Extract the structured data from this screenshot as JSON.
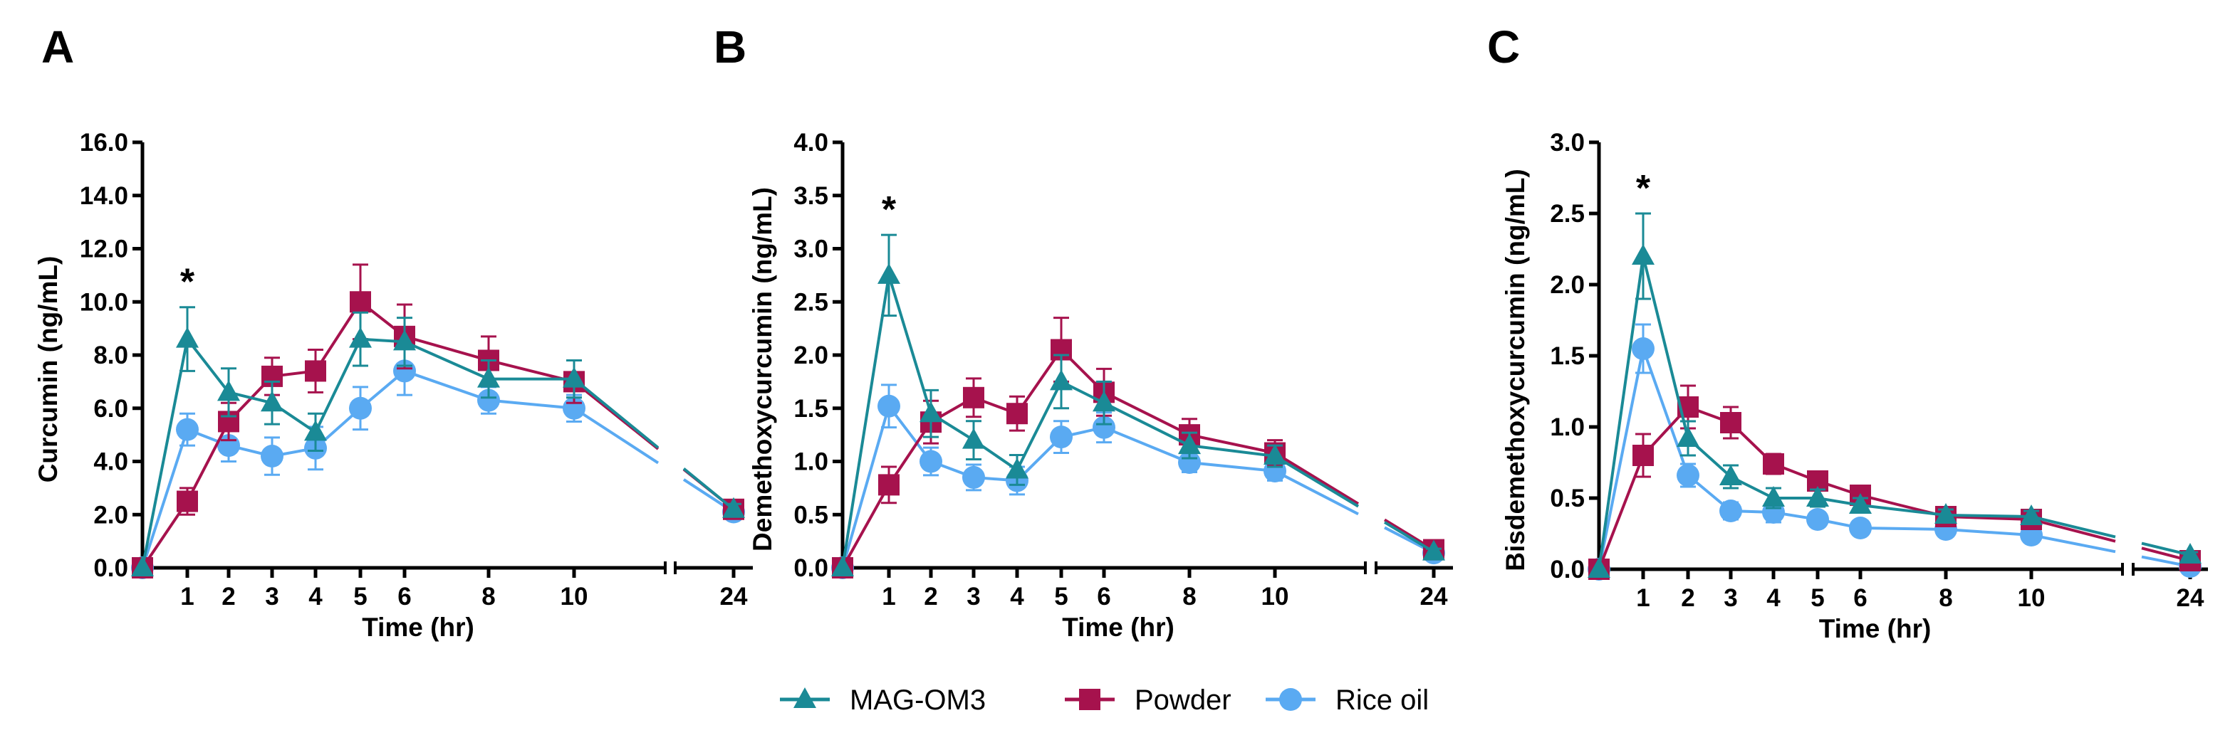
{
  "colors": {
    "mag_om3": "#1a8a96",
    "powder": "#a6124d",
    "rice_oil": "#5aaaf2",
    "axis": "#000000"
  },
  "legend": {
    "entries": [
      {
        "label": "MAG-OM3",
        "marker": "triangle",
        "color_key": "mag_om3"
      },
      {
        "label": "Powder",
        "marker": "square",
        "color_key": "powder"
      },
      {
        "label": "Rice oil",
        "marker": "circle",
        "color_key": "rice_oil"
      }
    ]
  },
  "chart_data": [
    {
      "panel": "A",
      "type": "line",
      "title": "",
      "xlabel": "Time (hr)",
      "ylabel": "Curcumin (ng/mL)",
      "x_ticks": [
        1,
        2,
        3,
        4,
        5,
        6,
        8,
        10,
        24
      ],
      "y_ticks": [
        "0.0",
        "2.0",
        "4.0",
        "6.0",
        "8.0",
        "10.0",
        "12.0",
        "14.0",
        "16.0"
      ],
      "ylim": [
        0,
        16
      ],
      "x_axis_break": "between 10 and 24",
      "annotations": [
        {
          "text": "*",
          "x": 1
        }
      ],
      "x": [
        0,
        1,
        2,
        3,
        4,
        5,
        6,
        8,
        10,
        24
      ],
      "series": [
        {
          "name": "MAG-OM3",
          "values": [
            0,
            8.6,
            6.6,
            6.2,
            5.1,
            8.6,
            8.5,
            7.1,
            7.1,
            2.2
          ],
          "errors": [
            0,
            1.2,
            0.9,
            0.8,
            0.7,
            1.0,
            0.9,
            0.7,
            0.7,
            0.2
          ]
        },
        {
          "name": "Powder",
          "values": [
            0,
            2.5,
            5.5,
            7.2,
            7.4,
            10.0,
            8.7,
            7.8,
            7.0,
            2.2
          ],
          "errors": [
            0,
            0.5,
            0.7,
            0.7,
            0.8,
            1.4,
            1.2,
            0.9,
            0.8,
            0.2
          ]
        },
        {
          "name": "Rice oil",
          "values": [
            0,
            5.2,
            4.6,
            4.2,
            4.5,
            6.0,
            7.4,
            6.3,
            6.0,
            2.1
          ],
          "errors": [
            0,
            0.6,
            0.6,
            0.7,
            0.8,
            0.8,
            0.9,
            0.5,
            0.5,
            0.2
          ]
        }
      ]
    },
    {
      "panel": "B",
      "type": "line",
      "title": "",
      "xlabel": "Time (hr)",
      "ylabel": "Demethoxycurcumin (ng/mL)",
      "x_ticks": [
        1,
        2,
        3,
        4,
        5,
        6,
        8,
        10,
        24
      ],
      "y_ticks": [
        "0.0",
        "0.5",
        "1.0",
        "1.5",
        "2.0",
        "2.5",
        "3.0",
        "3.5",
        "4.0"
      ],
      "ylim": [
        0,
        4
      ],
      "x_axis_break": "between 10 and 24",
      "annotations": [
        {
          "text": "*",
          "x": 1
        }
      ],
      "x": [
        0,
        1,
        2,
        3,
        4,
        5,
        6,
        8,
        10,
        24
      ],
      "series": [
        {
          "name": "MAG-OM3",
          "values": [
            0,
            2.75,
            1.45,
            1.2,
            0.92,
            1.75,
            1.55,
            1.15,
            1.05,
            0.15
          ],
          "errors": [
            0,
            0.38,
            0.22,
            0.18,
            0.14,
            0.25,
            0.2,
            0.12,
            0.1,
            0.03
          ]
        },
        {
          "name": "Powder",
          "values": [
            0,
            0.78,
            1.37,
            1.6,
            1.45,
            2.05,
            1.65,
            1.25,
            1.08,
            0.17
          ],
          "errors": [
            0,
            0.17,
            0.2,
            0.18,
            0.16,
            0.3,
            0.22,
            0.15,
            0.12,
            0.03
          ]
        },
        {
          "name": "Rice oil",
          "values": [
            0,
            1.52,
            1.0,
            0.85,
            0.82,
            1.23,
            1.32,
            0.99,
            0.91,
            0.14
          ],
          "errors": [
            0,
            0.2,
            0.13,
            0.12,
            0.13,
            0.15,
            0.14,
            0.09,
            0.09,
            0.02
          ]
        }
      ]
    },
    {
      "panel": "C",
      "type": "line",
      "title": "",
      "xlabel": "Time (hr)",
      "ylabel": "Bisdemethoxycurcumin (ng/mL)",
      "x_ticks": [
        1,
        2,
        3,
        4,
        5,
        6,
        8,
        10,
        24
      ],
      "y_ticks": [
        "0.0",
        "0.5",
        "1.0",
        "1.5",
        "2.0",
        "2.5",
        "3.0"
      ],
      "ylim": [
        0,
        3
      ],
      "x_axis_break": "between 10 and 24",
      "annotations": [
        {
          "text": "*",
          "x": 1
        }
      ],
      "x": [
        0,
        1,
        2,
        3,
        4,
        5,
        6,
        8,
        10,
        24
      ],
      "series": [
        {
          "name": "MAG-OM3",
          "values": [
            0,
            2.2,
            0.92,
            0.65,
            0.5,
            0.5,
            0.45,
            0.38,
            0.37,
            0.1
          ],
          "errors": [
            0,
            0.3,
            0.12,
            0.08,
            0.07,
            0.06,
            0.05,
            0.04,
            0.04,
            0.02
          ]
        },
        {
          "name": "Powder",
          "values": [
            0,
            0.8,
            1.14,
            1.03,
            0.74,
            0.62,
            0.52,
            0.37,
            0.35,
            0.06
          ],
          "errors": [
            0,
            0.15,
            0.15,
            0.11,
            0.07,
            0.06,
            0.05,
            0.04,
            0.04,
            0.02
          ]
        },
        {
          "name": "Rice oil",
          "values": [
            0,
            1.55,
            0.66,
            0.41,
            0.4,
            0.35,
            0.29,
            0.28,
            0.24,
            0.02
          ],
          "errors": [
            0,
            0.17,
            0.08,
            0.06,
            0.07,
            0.05,
            0.04,
            0.04,
            0.04,
            0.01
          ]
        }
      ]
    }
  ]
}
